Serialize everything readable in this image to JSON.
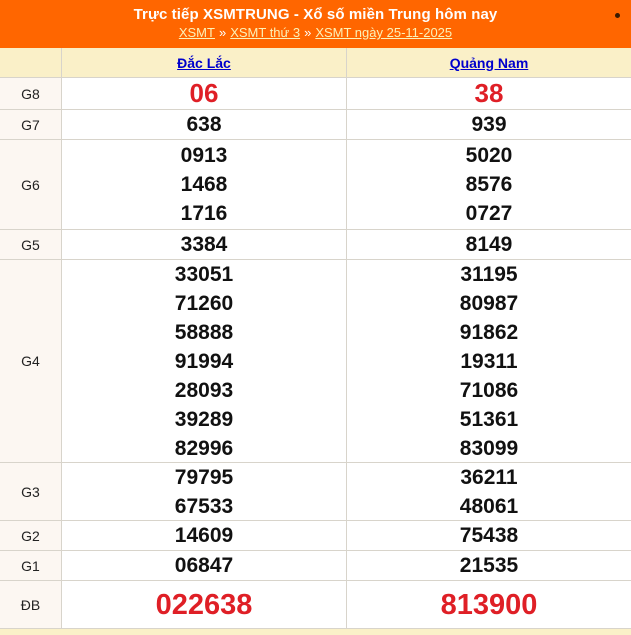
{
  "header": {
    "title": "Trực tiếp XSMTRUNG - Xổ số miền Trung hôm nay",
    "separator": "»",
    "breadcrumb": [
      {
        "label": "XSMT"
      },
      {
        "label": "XSMT thứ 3"
      },
      {
        "label": "XSMT ngày 25-11-2025"
      }
    ]
  },
  "table": {
    "columns": [
      "Đắc Lắc",
      "Quảng Nam"
    ],
    "rows": [
      {
        "prize": "G8",
        "highlight": true,
        "values": [
          [
            "06"
          ],
          [
            "38"
          ]
        ]
      },
      {
        "prize": "G7",
        "highlight": false,
        "values": [
          [
            "638"
          ],
          [
            "939"
          ]
        ]
      },
      {
        "prize": "G6",
        "highlight": false,
        "values": [
          [
            "0913",
            "1468",
            "1716"
          ],
          [
            "5020",
            "8576",
            "0727"
          ]
        ]
      },
      {
        "prize": "G5",
        "highlight": false,
        "values": [
          [
            "3384"
          ],
          [
            "8149"
          ]
        ]
      },
      {
        "prize": "G4",
        "highlight": false,
        "values": [
          [
            "33051",
            "71260",
            "58888",
            "91994",
            "28093",
            "39289",
            "82996"
          ],
          [
            "31195",
            "80987",
            "91862",
            "19311",
            "71086",
            "51361",
            "83099"
          ]
        ]
      },
      {
        "prize": "G3",
        "highlight": false,
        "values": [
          [
            "79795",
            "67533"
          ],
          [
            "36211",
            "48061"
          ]
        ]
      },
      {
        "prize": "G2",
        "highlight": false,
        "values": [
          [
            "14609"
          ],
          [
            "75438"
          ]
        ]
      },
      {
        "prize": "G1",
        "highlight": false,
        "values": [
          [
            "06847"
          ],
          [
            "21535"
          ]
        ]
      },
      {
        "prize": "ĐB",
        "highlight": true,
        "values": [
          [
            "022638"
          ],
          [
            "813900"
          ]
        ]
      }
    ]
  },
  "colors": {
    "header_orange": "#FF6600",
    "header_cream": "#FAF0C8",
    "highlight_red": "#DF1F26",
    "link_blue": "#0000CC"
  }
}
